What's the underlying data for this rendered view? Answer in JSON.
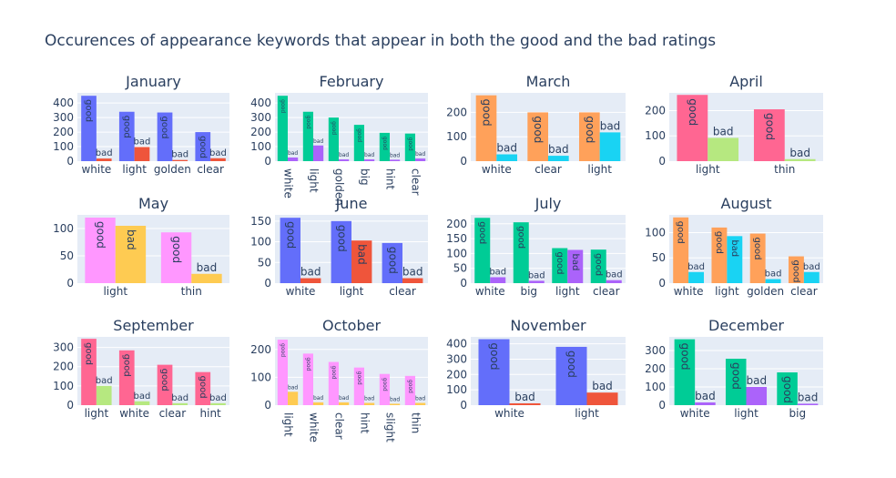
{
  "title": "Occurences of appearance keywords that appear in both the good and the bad ratings",
  "colors": {
    "white": "#636efa",
    "light": "#636efa",
    "golden": "#636efa",
    "clear": "#636efa",
    "big": "#636efa",
    "hint": "#636efa",
    "thin": "#636efa"
  },
  "chart_data": [
    {
      "type": "bar",
      "title": "January",
      "categories": [
        "white",
        "light",
        "golden",
        "clear"
      ],
      "good": [
        450,
        340,
        335,
        200
      ],
      "bad": [
        18,
        97,
        8,
        20
      ],
      "good_color": "#636efa",
      "bad_color": "#ef553b",
      "ylim": [
        0,
        470
      ],
      "yticks": [
        0,
        100,
        200,
        300,
        400
      ],
      "rotate_x": false,
      "label_style": "small"
    },
    {
      "type": "bar",
      "title": "February",
      "categories": [
        "white",
        "light",
        "golden",
        "big",
        "hint",
        "clear"
      ],
      "good": [
        450,
        340,
        300,
        250,
        195,
        190
      ],
      "bad": [
        25,
        108,
        12,
        12,
        10,
        18
      ],
      "good_color": "#00cc96",
      "bad_color": "#ab63fa",
      "ylim": [
        0,
        470
      ],
      "yticks": [
        0,
        100,
        200,
        300,
        400
      ],
      "rotate_x": true,
      "label_style": "tiny"
    },
    {
      "type": "bar",
      "title": "March",
      "categories": [
        "white",
        "clear",
        "light"
      ],
      "good": [
        270,
        200,
        200
      ],
      "bad": [
        28,
        22,
        118
      ],
      "good_color": "#ffa15a",
      "bad_color": "#19d3f3",
      "ylim": [
        0,
        280
      ],
      "yticks": [
        0,
        100,
        200
      ],
      "rotate_x": false,
      "label_style": "big"
    },
    {
      "type": "bar",
      "title": "April",
      "categories": [
        "light",
        "thin"
      ],
      "good": [
        262,
        205
      ],
      "bad": [
        92,
        8
      ],
      "good_color": "#ff6692",
      "bad_color": "#b6e880",
      "ylim": [
        0,
        270
      ],
      "yticks": [
        0,
        100,
        200
      ],
      "rotate_x": false,
      "label_style": "big"
    },
    {
      "type": "bar",
      "title": "May",
      "categories": [
        "light",
        "thin"
      ],
      "good": [
        120,
        93
      ],
      "bad": [
        105,
        17
      ],
      "good_color": "#ff97ff",
      "bad_color": "#fecb52",
      "ylim": [
        0,
        125
      ],
      "yticks": [
        0,
        50,
        100
      ],
      "rotate_x": false,
      "label_style": "big"
    },
    {
      "type": "bar",
      "title": "June",
      "categories": [
        "white",
        "light",
        "clear"
      ],
      "good": [
        158,
        150,
        97
      ],
      "bad": [
        12,
        103,
        12
      ],
      "good_color": "#636efa",
      "bad_color": "#ef553b",
      "ylim": [
        0,
        165
      ],
      "yticks": [
        0,
        50,
        100,
        150
      ],
      "rotate_x": false,
      "label_style": "big"
    },
    {
      "type": "bar",
      "title": "July",
      "categories": [
        "white",
        "big",
        "light",
        "clear"
      ],
      "good": [
        220,
        205,
        118,
        113
      ],
      "bad": [
        20,
        8,
        112,
        10
      ],
      "good_color": "#00cc96",
      "bad_color": "#ab63fa",
      "ylim": [
        0,
        230
      ],
      "yticks": [
        0,
        50,
        100,
        150,
        200
      ],
      "rotate_x": false,
      "label_style": "small"
    },
    {
      "type": "bar",
      "title": "August",
      "categories": [
        "white",
        "light",
        "golden",
        "clear"
      ],
      "good": [
        130,
        110,
        98,
        53
      ],
      "bad": [
        22,
        93,
        8,
        22
      ],
      "good_color": "#ffa15a",
      "bad_color": "#19d3f3",
      "ylim": [
        0,
        135
      ],
      "yticks": [
        0,
        50,
        100
      ],
      "rotate_x": false,
      "label_style": "small"
    },
    {
      "type": "bar",
      "title": "September",
      "categories": [
        "light",
        "white",
        "clear",
        "hint"
      ],
      "good": [
        345,
        285,
        210,
        172
      ],
      "bad": [
        100,
        20,
        10,
        10
      ],
      "good_color": "#ff6692",
      "bad_color": "#b6e880",
      "ylim": [
        0,
        355
      ],
      "yticks": [
        0,
        100,
        200,
        300
      ],
      "rotate_x": false,
      "label_style": "small"
    },
    {
      "type": "bar",
      "title": "October",
      "categories": [
        "light",
        "white",
        "clear",
        "hint",
        "slight",
        "thin"
      ],
      "good": [
        235,
        185,
        155,
        135,
        112,
        105
      ],
      "bad": [
        48,
        10,
        10,
        8,
        5,
        8
      ],
      "good_color": "#ff97ff",
      "bad_color": "#fecb52",
      "ylim": [
        0,
        245
      ],
      "yticks": [
        0,
        100,
        200
      ],
      "rotate_x": true,
      "label_style": "tiny"
    },
    {
      "type": "bar",
      "title": "November",
      "categories": [
        "white",
        "light"
      ],
      "good": [
        430,
        380
      ],
      "bad": [
        12,
        82
      ],
      "good_color": "#636efa",
      "bad_color": "#ef553b",
      "ylim": [
        0,
        445
      ],
      "yticks": [
        0,
        100,
        200,
        300,
        400
      ],
      "rotate_x": false,
      "label_style": "big"
    },
    {
      "type": "bar",
      "title": "December",
      "categories": [
        "white",
        "light",
        "big"
      ],
      "good": [
        362,
        255,
        180
      ],
      "bad": [
        15,
        100,
        8
      ],
      "good_color": "#00cc96",
      "bad_color": "#ab63fa",
      "ylim": [
        0,
        375
      ],
      "yticks": [
        0,
        100,
        200,
        300
      ],
      "rotate_x": false,
      "label_style": "big"
    }
  ],
  "labels": {
    "good": "good",
    "bad": "bad"
  }
}
